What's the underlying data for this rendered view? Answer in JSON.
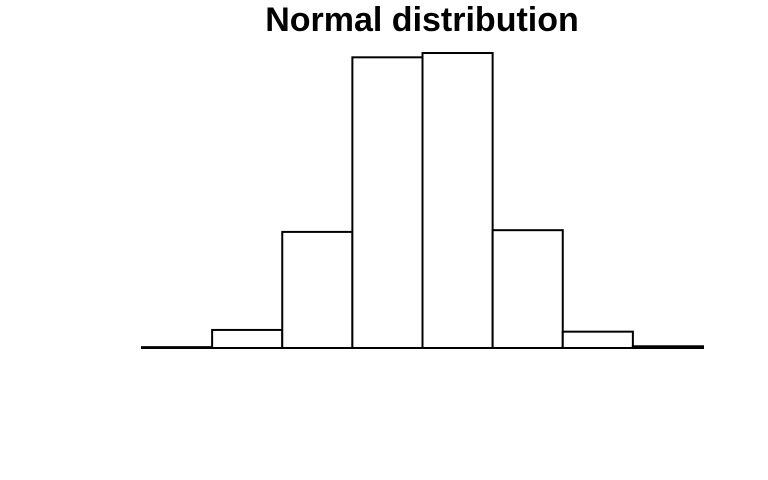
{
  "chart_data": {
    "type": "histogram",
    "title": "Normal distribution",
    "bins": [
      -4,
      -3,
      -2,
      -1,
      0,
      1,
      2,
      3,
      4
    ],
    "values": [
      1,
      21,
      135,
      338,
      343,
      137,
      19,
      2
    ],
    "color": "#ffffff",
    "xlim": [
      -4,
      4
    ],
    "ylim": [
      0,
      350
    ]
  }
}
